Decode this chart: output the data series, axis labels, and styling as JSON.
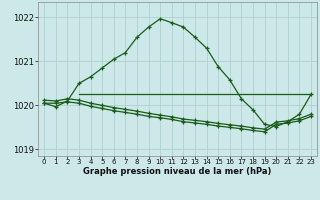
{
  "bg_color": "#cce8e8",
  "line_color": "#1a5c1a",
  "grid_color": "#aacccc",
  "xlabel": "Graphe pression niveau de la mer (hPa)",
  "ylim": [
    1018.85,
    1022.35
  ],
  "xlim": [
    -0.5,
    23.5
  ],
  "yticks": [
    1019,
    1020,
    1021,
    1022
  ],
  "xticks": [
    0,
    1,
    2,
    3,
    4,
    5,
    6,
    7,
    8,
    9,
    10,
    11,
    12,
    13,
    14,
    15,
    16,
    17,
    18,
    19,
    20,
    21,
    22,
    23
  ],
  "main_x": [
    0,
    1,
    2,
    3,
    4,
    5,
    6,
    7,
    8,
    9,
    10,
    11,
    12,
    13,
    14,
    15,
    16,
    17,
    18,
    19,
    20,
    21,
    22,
    23
  ],
  "main_y": [
    1020.05,
    1019.97,
    1020.1,
    1020.5,
    1020.65,
    1020.85,
    1021.05,
    1021.2,
    1021.55,
    1021.78,
    1021.97,
    1021.88,
    1021.78,
    1021.55,
    1021.3,
    1020.88,
    1020.58,
    1020.15,
    1019.9,
    1019.57,
    1019.52,
    1019.63,
    1019.8,
    1020.25
  ],
  "flat_x": [
    3,
    4,
    5,
    6,
    7,
    8,
    9,
    10,
    11,
    12,
    13,
    14,
    15,
    16,
    17,
    18,
    19,
    20,
    21,
    22,
    23
  ],
  "flat_y": [
    1020.25,
    1020.25,
    1020.25,
    1020.25,
    1020.25,
    1020.25,
    1020.25,
    1020.25,
    1020.25,
    1020.25,
    1020.25,
    1020.25,
    1020.25,
    1020.25,
    1020.25,
    1020.25,
    1020.25,
    1020.25,
    1020.25,
    1020.25,
    1020.25
  ],
  "line3_x": [
    0,
    1,
    2,
    3,
    4,
    5,
    6,
    7,
    8,
    9,
    10,
    11,
    12,
    13,
    14,
    15,
    16,
    17,
    18,
    19,
    20,
    21,
    22,
    23
  ],
  "line3_y": [
    1020.05,
    1020.05,
    1020.08,
    1020.05,
    1019.98,
    1019.93,
    1019.88,
    1019.84,
    1019.8,
    1019.75,
    1019.72,
    1019.68,
    1019.63,
    1019.6,
    1019.57,
    1019.53,
    1019.5,
    1019.47,
    1019.43,
    1019.4,
    1019.57,
    1019.6,
    1019.65,
    1019.75
  ],
  "line4_x": [
    0,
    1,
    2,
    3,
    4,
    5,
    6,
    7,
    8,
    9,
    10,
    11,
    12,
    13,
    14,
    15,
    16,
    17,
    18,
    19,
    20,
    21,
    22,
    23
  ],
  "line4_y": [
    1020.12,
    1020.1,
    1020.15,
    1020.12,
    1020.05,
    1020.0,
    1019.95,
    1019.91,
    1019.87,
    1019.82,
    1019.78,
    1019.74,
    1019.69,
    1019.66,
    1019.63,
    1019.59,
    1019.56,
    1019.53,
    1019.49,
    1019.46,
    1019.62,
    1019.65,
    1019.7,
    1019.8
  ]
}
